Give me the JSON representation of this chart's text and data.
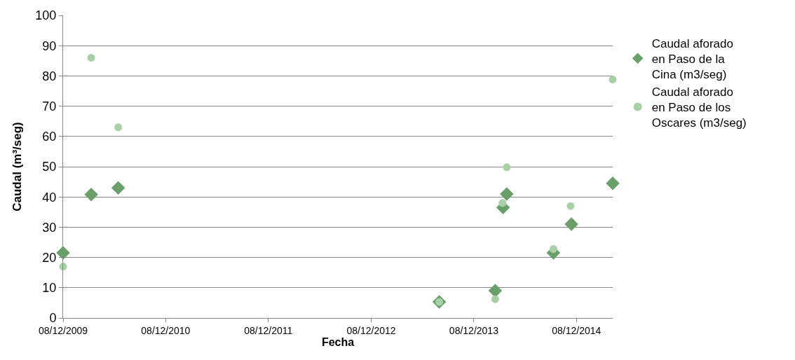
{
  "chart_data": {
    "type": "scatter",
    "xlabel": "Fecha",
    "ylabel": "Caudal (m³/seg)",
    "xlim": [
      "2009-12-08",
      "2015-04-16"
    ],
    "xticks": [
      {
        "value": "2009-12-08",
        "label": "08/12/2009"
      },
      {
        "value": "2010-12-08",
        "label": "08/12/2010"
      },
      {
        "value": "2011-12-08",
        "label": "08/12/2011"
      },
      {
        "value": "2012-12-08",
        "label": "08/12/2012"
      },
      {
        "value": "2013-12-08",
        "label": "08/12/2013"
      },
      {
        "value": "2014-12-08",
        "label": "08/12/2014"
      }
    ],
    "ylim": [
      0,
      100
    ],
    "yticks": [
      0,
      10,
      20,
      30,
      40,
      50,
      60,
      70,
      80,
      90,
      100
    ],
    "grid": "y",
    "legend": "right",
    "series": [
      {
        "name": "Caudal aforado en Paso de la Cina (m3/seg)",
        "color": "#6a9e6a",
        "marker": "diamond",
        "x": [
          "2009-12-08",
          "2010-03-18",
          "2010-06-22",
          "2013-08-07",
          "2014-02-22",
          "2014-03-22",
          "2014-04-04",
          "2014-09-17",
          "2014-11-20",
          "2015-04-16"
        ],
        "values": [
          21.5,
          40.8,
          43,
          5.3,
          9,
          36.5,
          41,
          21.5,
          31,
          44.5
        ]
      },
      {
        "name": "Caudal aforado en Paso de los Oscares (m3/seg)",
        "color": "#a9cfa6",
        "marker": "circle",
        "x": [
          "2009-12-08",
          "2010-03-18",
          "2010-06-22",
          "2013-08-07",
          "2014-02-22",
          "2014-03-20",
          "2014-04-04",
          "2014-09-17",
          "2014-11-17",
          "2015-04-16"
        ],
        "values": [
          17,
          86,
          63,
          5.3,
          6.2,
          38,
          49.8,
          22.8,
          37,
          78.8
        ]
      }
    ]
  }
}
